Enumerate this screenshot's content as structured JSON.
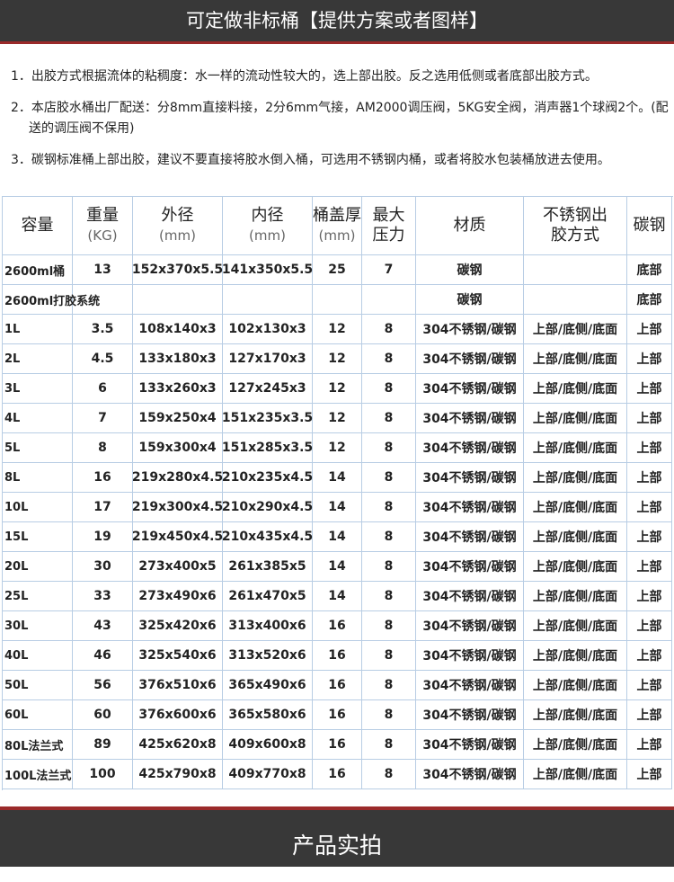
{
  "header": {
    "title": "可定做非标桶【提供方案或者图样】"
  },
  "notes": [
    "1．出胶方式根据流体的粘稠度：水一样的流动性较大的，选上部出胶。反之选用低侧或者底部出胶方式。",
    "2．本店胶水桶出厂配送：分8mm直接料接，2分6mm气接，AM2000调压阀，5KG安全阀，消声器1个球阀2个。(配送的调压阀不保用)",
    "3．碳钢标准桶上部出胶，建议不要直接将胶水倒入桶，可选用不锈钢内桶，或者将胶水包装桶放进去使用。"
  ],
  "table": {
    "header": [
      [
        "容量"
      ],
      [
        "重量",
        "(KG)"
      ],
      [
        "外径",
        "(mm)"
      ],
      [
        "内径",
        "(mm)"
      ],
      [
        "桶盖厚",
        "(mm)"
      ],
      [
        "最大",
        "压力"
      ],
      [
        "材质"
      ],
      [
        "不锈钢出",
        "胶方式"
      ],
      [
        "碳钢"
      ]
    ],
    "rows": [
      [
        "2600ml桶",
        13,
        "152x370x5.5",
        "141x350x5.5",
        25,
        7,
        "碳钢",
        null,
        "底部"
      ],
      [
        "2600ml打胶系统",
        null,
        null,
        null,
        null,
        null,
        "碳钢",
        null,
        "底部"
      ],
      [
        "1L",
        3.5,
        "108x140x3",
        "102x130x3",
        12,
        8,
        "304不锈钢/碳钢",
        "上部/底侧/底面",
        "上部"
      ],
      [
        "2L",
        4.5,
        "133x180x3",
        "127x170x3",
        12,
        8,
        "304不锈钢/碳钢",
        "上部/底侧/底面",
        "上部"
      ],
      [
        "3L",
        6,
        "133x260x3",
        "127x245x3",
        12,
        8,
        "304不锈钢/碳钢",
        "上部/底侧/底面",
        "上部"
      ],
      [
        "4L",
        7,
        "159x250x4",
        "151x235x3.5",
        12,
        8,
        "304不锈钢/碳钢",
        "上部/底侧/底面",
        "上部"
      ],
      [
        "5L",
        8,
        "159x300x4",
        "151x285x3.5",
        12,
        8,
        "304不锈钢/碳钢",
        "上部/底侧/底面",
        "上部"
      ],
      [
        "8L",
        16,
        "219x280x4.5",
        "210x235x4.5",
        14,
        8,
        "304不锈钢/碳钢",
        "上部/底侧/底面",
        "上部"
      ],
      [
        "10L",
        17,
        "219x300x4.5",
        "210x290x4.5",
        14,
        8,
        "304不锈钢/碳钢",
        "上部/底侧/底面",
        "上部"
      ],
      [
        "15L",
        19,
        "219x450x4.5",
        "210x435x4.5",
        14,
        8,
        "304不锈钢/碳钢",
        "上部/底侧/底面",
        "上部"
      ],
      [
        "20L",
        30,
        "273x400x5",
        "261x385x5",
        14,
        8,
        "304不锈钢/碳钢",
        "上部/底侧/底面",
        "上部"
      ],
      [
        "25L",
        33,
        "273x490x6",
        "261x470x5",
        14,
        8,
        "304不锈钢/碳钢",
        "上部/底侧/底面",
        "上部"
      ],
      [
        "30L",
        43,
        "325x420x6",
        "313x400x6",
        16,
        8,
        "304不锈钢/碳钢",
        "上部/底侧/底面",
        "上部"
      ],
      [
        "40L",
        46,
        "325x540x6",
        "313x520x6",
        16,
        8,
        "304不锈钢/碳钢",
        "上部/底侧/底面",
        "上部"
      ],
      [
        "50L",
        56,
        "376x510x6",
        "365x490x6",
        16,
        8,
        "304不锈钢/碳钢",
        "上部/底侧/底面",
        "上部"
      ],
      [
        "60L",
        60,
        "376x600x6",
        "365x580x6",
        16,
        8,
        "304不锈钢/碳钢",
        "上部/底侧/底面",
        "上部"
      ],
      [
        "80L法兰式",
        89,
        "425x620x8",
        "409x600x8",
        16,
        8,
        "304不锈钢/碳钢",
        "上部/底侧/底面",
        "上部"
      ],
      [
        "100L法兰式",
        100,
        "425x790x8",
        "409x770x8",
        16,
        8,
        "304不锈钢/碳钢",
        "上部/底侧/底面",
        "上部"
      ]
    ]
  },
  "footer": {
    "title": "产品实拍"
  }
}
